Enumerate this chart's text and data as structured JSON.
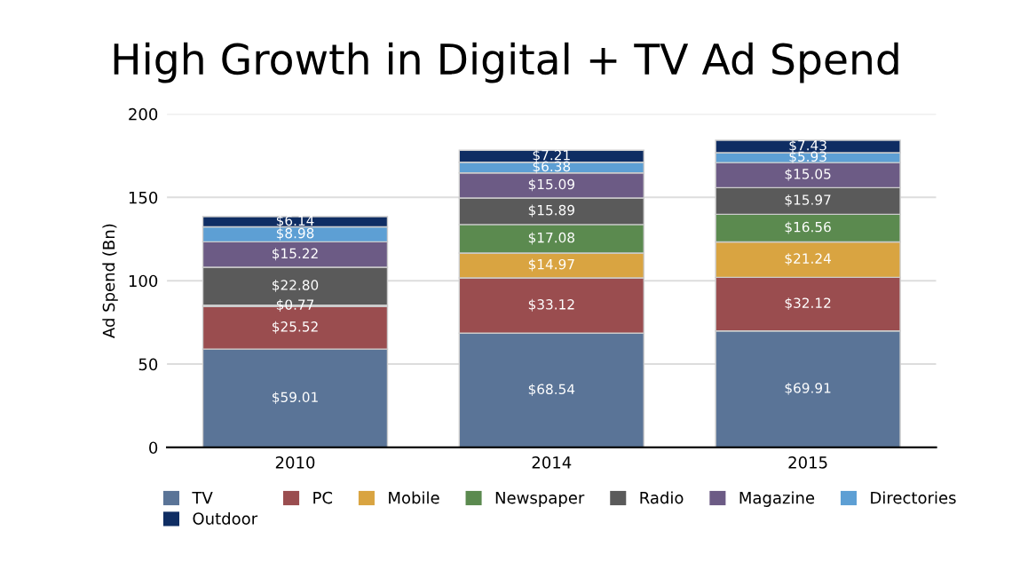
{
  "chart_data": {
    "type": "bar",
    "title": "High Growth in Digital + TV Ad Spend",
    "ylabel": "Ad Spend (Bn)",
    "categories": [
      "2010",
      "2014",
      "2015"
    ],
    "stacked": true,
    "ylim": [
      0,
      200
    ],
    "yticks": [
      0,
      50,
      100,
      150,
      200
    ],
    "grid": "y",
    "legend": "bottom",
    "series": [
      {
        "name": "TV",
        "color": "#5a7497",
        "values": [
          59.01,
          68.54,
          69.91
        ],
        "value_labels": [
          "$59.01",
          "$68.54",
          "$69.91"
        ]
      },
      {
        "name": "PC",
        "color": "#9a4d4f",
        "values": [
          25.52,
          33.12,
          32.12
        ],
        "value_labels": [
          "$25.52",
          "$33.12",
          "$32.12"
        ]
      },
      {
        "name": "Mobile",
        "color": "#d9a441",
        "values": [
          0.77,
          14.97,
          21.24
        ],
        "value_labels": [
          "$0.77",
          "$14.97",
          "$21.24"
        ]
      },
      {
        "name": "Newspaper",
        "color": "#5b8a4f",
        "values": [
          null,
          17.08,
          16.56
        ],
        "value_labels": [
          null,
          "$17.08",
          "$16.56"
        ]
      },
      {
        "name": "Radio",
        "color": "#5a5a5a",
        "values": [
          22.8,
          15.89,
          15.97
        ],
        "value_labels": [
          "$22.80",
          "$15.89",
          "$15.97"
        ]
      },
      {
        "name": "Magazine",
        "color": "#6c5b85",
        "values": [
          15.22,
          15.09,
          15.05
        ],
        "value_labels": [
          "$15.22",
          "$15.09",
          "$15.05"
        ]
      },
      {
        "name": "Directories",
        "color": "#5d9fd4",
        "values": [
          8.98,
          6.38,
          5.93
        ],
        "value_labels": [
          "$8.98",
          "$6.38",
          "$5.93"
        ]
      },
      {
        "name": "Outdoor",
        "color": "#0f2d63",
        "values": [
          6.14,
          7.21,
          7.43
        ],
        "value_labels": [
          "$6.14",
          "$7.21",
          "$7.43"
        ]
      }
    ]
  }
}
